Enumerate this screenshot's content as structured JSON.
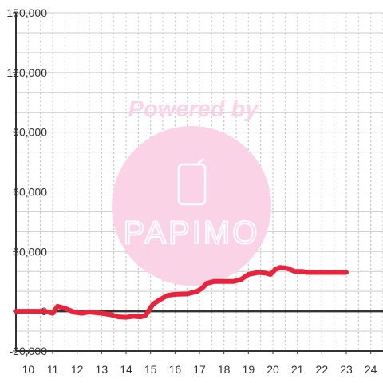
{
  "chart_data": {
    "type": "line",
    "xlim": [
      9.5,
      24.5
    ],
    "ylim": [
      -20000,
      150000
    ],
    "xticks": [
      10,
      11,
      12,
      13,
      14,
      15,
      16,
      17,
      18,
      19,
      20,
      21,
      22,
      23,
      24
    ],
    "yticks": [
      -20000,
      0,
      30000,
      60000,
      90000,
      120000,
      150000
    ],
    "ytick_labels": [
      "-20,000",
      "0",
      "30,000",
      "60,000",
      "90,000",
      "120,000",
      "150,000"
    ],
    "xtick_labels": [
      "10",
      "11",
      "12",
      "13",
      "14",
      "15",
      "16",
      "17",
      "18",
      "19",
      "20",
      "21",
      "22",
      "23",
      "24"
    ],
    "grid": true,
    "series": [
      {
        "color": "#e8243c",
        "points": [
          [
            9.5,
            0
          ],
          [
            10.7,
            0
          ],
          [
            11.0,
            -1000
          ],
          [
            11.2,
            2500
          ],
          [
            11.5,
            1500
          ],
          [
            11.9,
            -500
          ],
          [
            12.2,
            -1000
          ],
          [
            12.5,
            -300
          ],
          [
            13.0,
            -1000
          ],
          [
            13.4,
            -1800
          ],
          [
            13.7,
            -2800
          ],
          [
            14.0,
            -3000
          ],
          [
            14.3,
            -2500
          ],
          [
            14.6,
            -2800
          ],
          [
            14.8,
            -2000
          ],
          [
            15.1,
            3500
          ],
          [
            15.4,
            6000
          ],
          [
            15.7,
            8000
          ],
          [
            16.0,
            8500
          ],
          [
            16.5,
            8700
          ],
          [
            16.9,
            10000
          ],
          [
            17.1,
            11500
          ],
          [
            17.3,
            14000
          ],
          [
            17.6,
            15000
          ],
          [
            18.0,
            15000
          ],
          [
            18.4,
            15000
          ],
          [
            18.7,
            16000
          ],
          [
            19.0,
            18500
          ],
          [
            19.4,
            19500
          ],
          [
            19.7,
            19200
          ],
          [
            19.9,
            18500
          ],
          [
            20.1,
            21000
          ],
          [
            20.3,
            22000
          ],
          [
            20.6,
            21500
          ],
          [
            20.9,
            20000
          ],
          [
            21.2,
            20000
          ],
          [
            21.4,
            19500
          ],
          [
            21.8,
            19500
          ],
          [
            22.3,
            19500
          ],
          [
            22.7,
            19500
          ],
          [
            23.0,
            19500
          ]
        ]
      }
    ]
  },
  "watermark": {
    "brand": "Powered by",
    "logo_text": "PAPIMO",
    "circle_color": "#fad3e7",
    "text_color": "#fad3e7",
    "logo_stroke": "#ffffff"
  },
  "colors": {
    "axis": "#333333",
    "grid_solid": "#cccccc",
    "grid_dash": "#bbbbbb"
  }
}
